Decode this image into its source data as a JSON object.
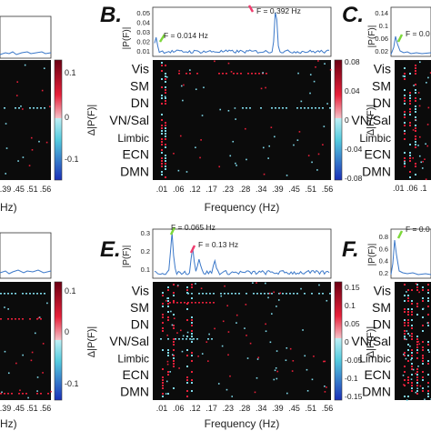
{
  "figure": {
    "networks": [
      "Vis",
      "SM",
      "DN",
      "VN/Sal",
      "Limbic",
      "ECN",
      "DMN"
    ],
    "network_colors": [
      "#3f5ee8",
      "#19a8e6",
      "#28a84a",
      "#7b55d8",
      "#e6e24a",
      "#f57a22",
      "#f24a8c"
    ],
    "colorbar_label": "Δ|P(F)|",
    "spectrum_ylabel": "|P(F)|",
    "xlabel": "Frequency (Hz)",
    "x_ticks": [
      ".01",
      ".06",
      ".12",
      ".17",
      ".23",
      ".28",
      ".34",
      ".39",
      ".45",
      ".51",
      ".56"
    ],
    "left_partial_ticks": [
      ".39",
      ".45",
      ".51",
      ".56"
    ],
    "left_partial_xlabel_fragment": "Hz)",
    "left_cb_ticks_top": [
      "0.1",
      "0",
      "-0.1"
    ],
    "left_cb_ticks_bottom": [
      "0.1",
      "0",
      "-0.1"
    ],
    "panels": {
      "B": {
        "label": "B.",
        "spectrum_yticks": [
          "0.05",
          "0.04",
          "0.03",
          "0.02",
          "0.01"
        ],
        "peaks": [
          {
            "text": "F = 0.014 Hz",
            "freq": 0.014,
            "amp": 0.018,
            "marker_color": "#7dd83a"
          },
          {
            "text": "F = 0.392 Hz",
            "freq": 0.392,
            "amp": 0.052,
            "marker_color": "#f03c6e"
          }
        ],
        "colorbar_ticks": [
          "0.08",
          "0.04",
          "0",
          "-0.04",
          "-0.08"
        ]
      },
      "C": {
        "label": "C.",
        "spectrum_yticks": [
          "0.14",
          "0.1",
          "0.06",
          "0.02"
        ],
        "peak_text_fragment": "F = 0.0"
      },
      "E": {
        "label": "E.",
        "spectrum_yticks": [
          "0.3",
          "0.2",
          "0.1"
        ],
        "peaks": [
          {
            "text": "F = 0.065 Hz",
            "freq": 0.065,
            "amp": 0.27,
            "marker_color": "#7dd83a"
          },
          {
            "text": "F = 0.13 Hz",
            "freq": 0.13,
            "amp": 0.18,
            "marker_color": "#f03c6e"
          }
        ],
        "colorbar_ticks": [
          "0.15",
          "0.1",
          "0.05",
          "0",
          "-0.05",
          "-0.1",
          "-0.15"
        ]
      },
      "F": {
        "label": "F.",
        "spectrum_yticks": [
          "0.8",
          "0.6",
          "0.4",
          "0.2"
        ],
        "peak_text_fragment": "F = 0.0"
      }
    },
    "colors": {
      "matrix_bg": "#0b0b0b",
      "spectrum_line": "#3b78c9",
      "accent_red": "#e8203a",
      "accent_cyan": "#7fd8e8"
    }
  }
}
